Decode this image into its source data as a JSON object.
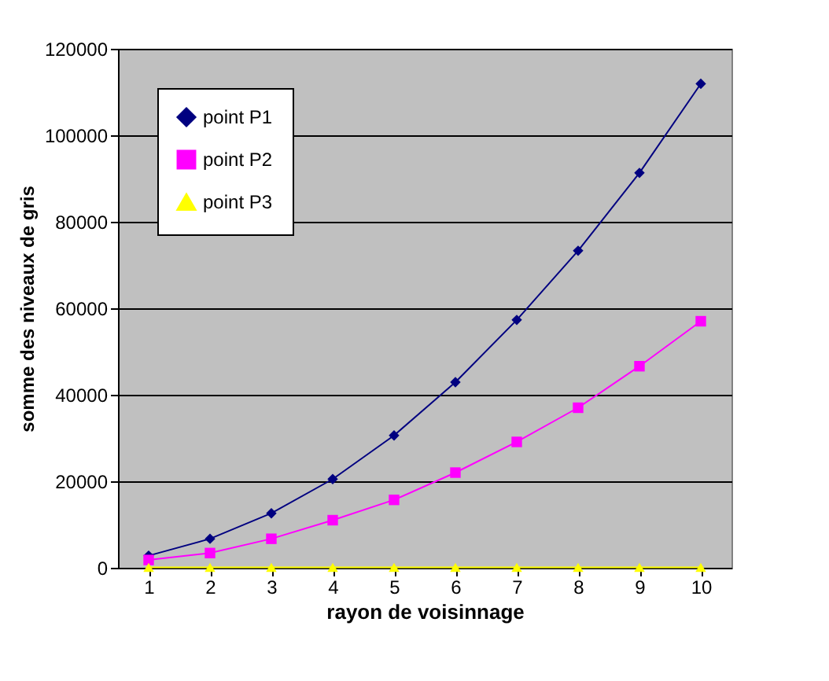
{
  "chart_data": {
    "type": "line",
    "xlabel": "rayon de voisinnage",
    "ylabel": "somme des niveaux de gris",
    "categories": [
      "1",
      "2",
      "3",
      "4",
      "5",
      "6",
      "7",
      "8",
      "9",
      "10"
    ],
    "series": [
      {
        "name": "point P1",
        "color": "#000080",
        "marker": "diamond",
        "values": [
          2800,
          6700,
          12600,
          20500,
          30600,
          42900,
          57300,
          73300,
          91300,
          111900
        ]
      },
      {
        "name": "point P2",
        "color": "#ff00ff",
        "marker": "square",
        "values": [
          1800,
          3400,
          6700,
          11000,
          15700,
          22000,
          29100,
          37000,
          46600,
          57000
        ]
      },
      {
        "name": "point P3",
        "color": "#ffff00",
        "marker": "triangle",
        "values": [
          100,
          100,
          100,
          100,
          100,
          100,
          100,
          100,
          100,
          100
        ]
      }
    ],
    "ylim": [
      0,
      120000
    ],
    "yticks": [
      0,
      20000,
      40000,
      60000,
      80000,
      100000,
      120000
    ],
    "grid": "y",
    "legend": "top left",
    "line_style": "solid"
  }
}
